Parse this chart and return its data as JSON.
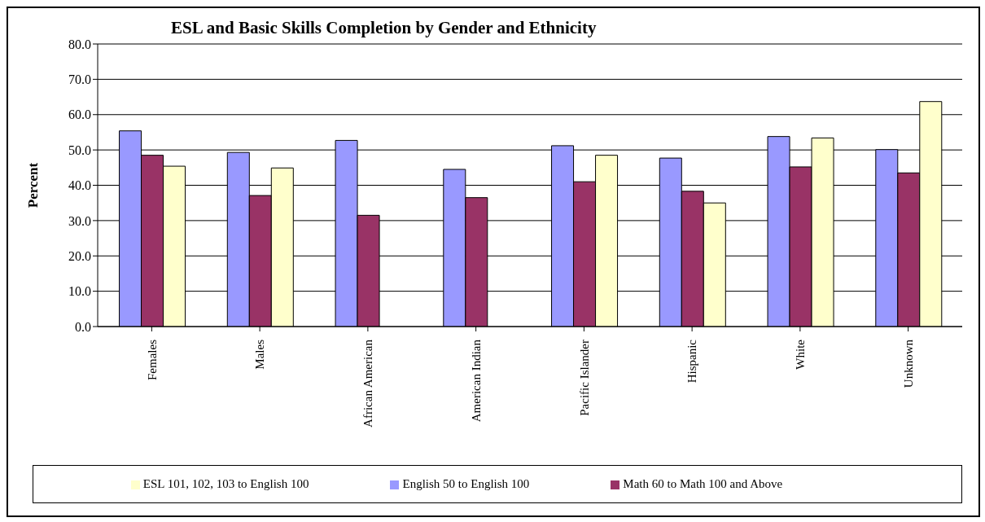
{
  "chart_data": {
    "type": "bar",
    "title": "ESL and Basic Skills Completion by Gender and Ethnicity",
    "ylabel": "Percent",
    "categories": [
      "Females",
      "Males",
      "African American",
      "American Indian",
      "Pacific Islander",
      "Hispanic",
      "White",
      "Unknown"
    ],
    "series": [
      {
        "name": "English 50 to English 100",
        "color": "#9999ff",
        "values": [
          55.4,
          49.3,
          52.7,
          44.5,
          51.2,
          47.7,
          53.8,
          50.1
        ]
      },
      {
        "name": "Math 60 to Math 100 and Above",
        "color": "#993366",
        "values": [
          48.5,
          37.1,
          31.5,
          36.5,
          41.0,
          38.3,
          45.2,
          43.5
        ]
      },
      {
        "name": "ESL 101, 102, 103 to English 100",
        "color": "#ffffcc",
        "values": [
          45.4,
          44.9,
          null,
          null,
          48.5,
          35.0,
          53.4,
          63.7
        ]
      }
    ],
    "ylim": [
      0,
      80
    ],
    "yticks": [
      {
        "value": 0,
        "label": "0.0"
      },
      {
        "value": 10,
        "label": "10.0"
      },
      {
        "value": 20,
        "label": "20.0"
      },
      {
        "value": 30,
        "label": "30.0"
      },
      {
        "value": 40,
        "label": "40.0"
      },
      {
        "value": 50,
        "label": "50.0"
      },
      {
        "value": 60,
        "label": "60.0"
      },
      {
        "value": 70,
        "label": "70.0"
      },
      {
        "value": 80,
        "label": "80.0"
      }
    ],
    "grid": "y",
    "legend": "bottom"
  }
}
